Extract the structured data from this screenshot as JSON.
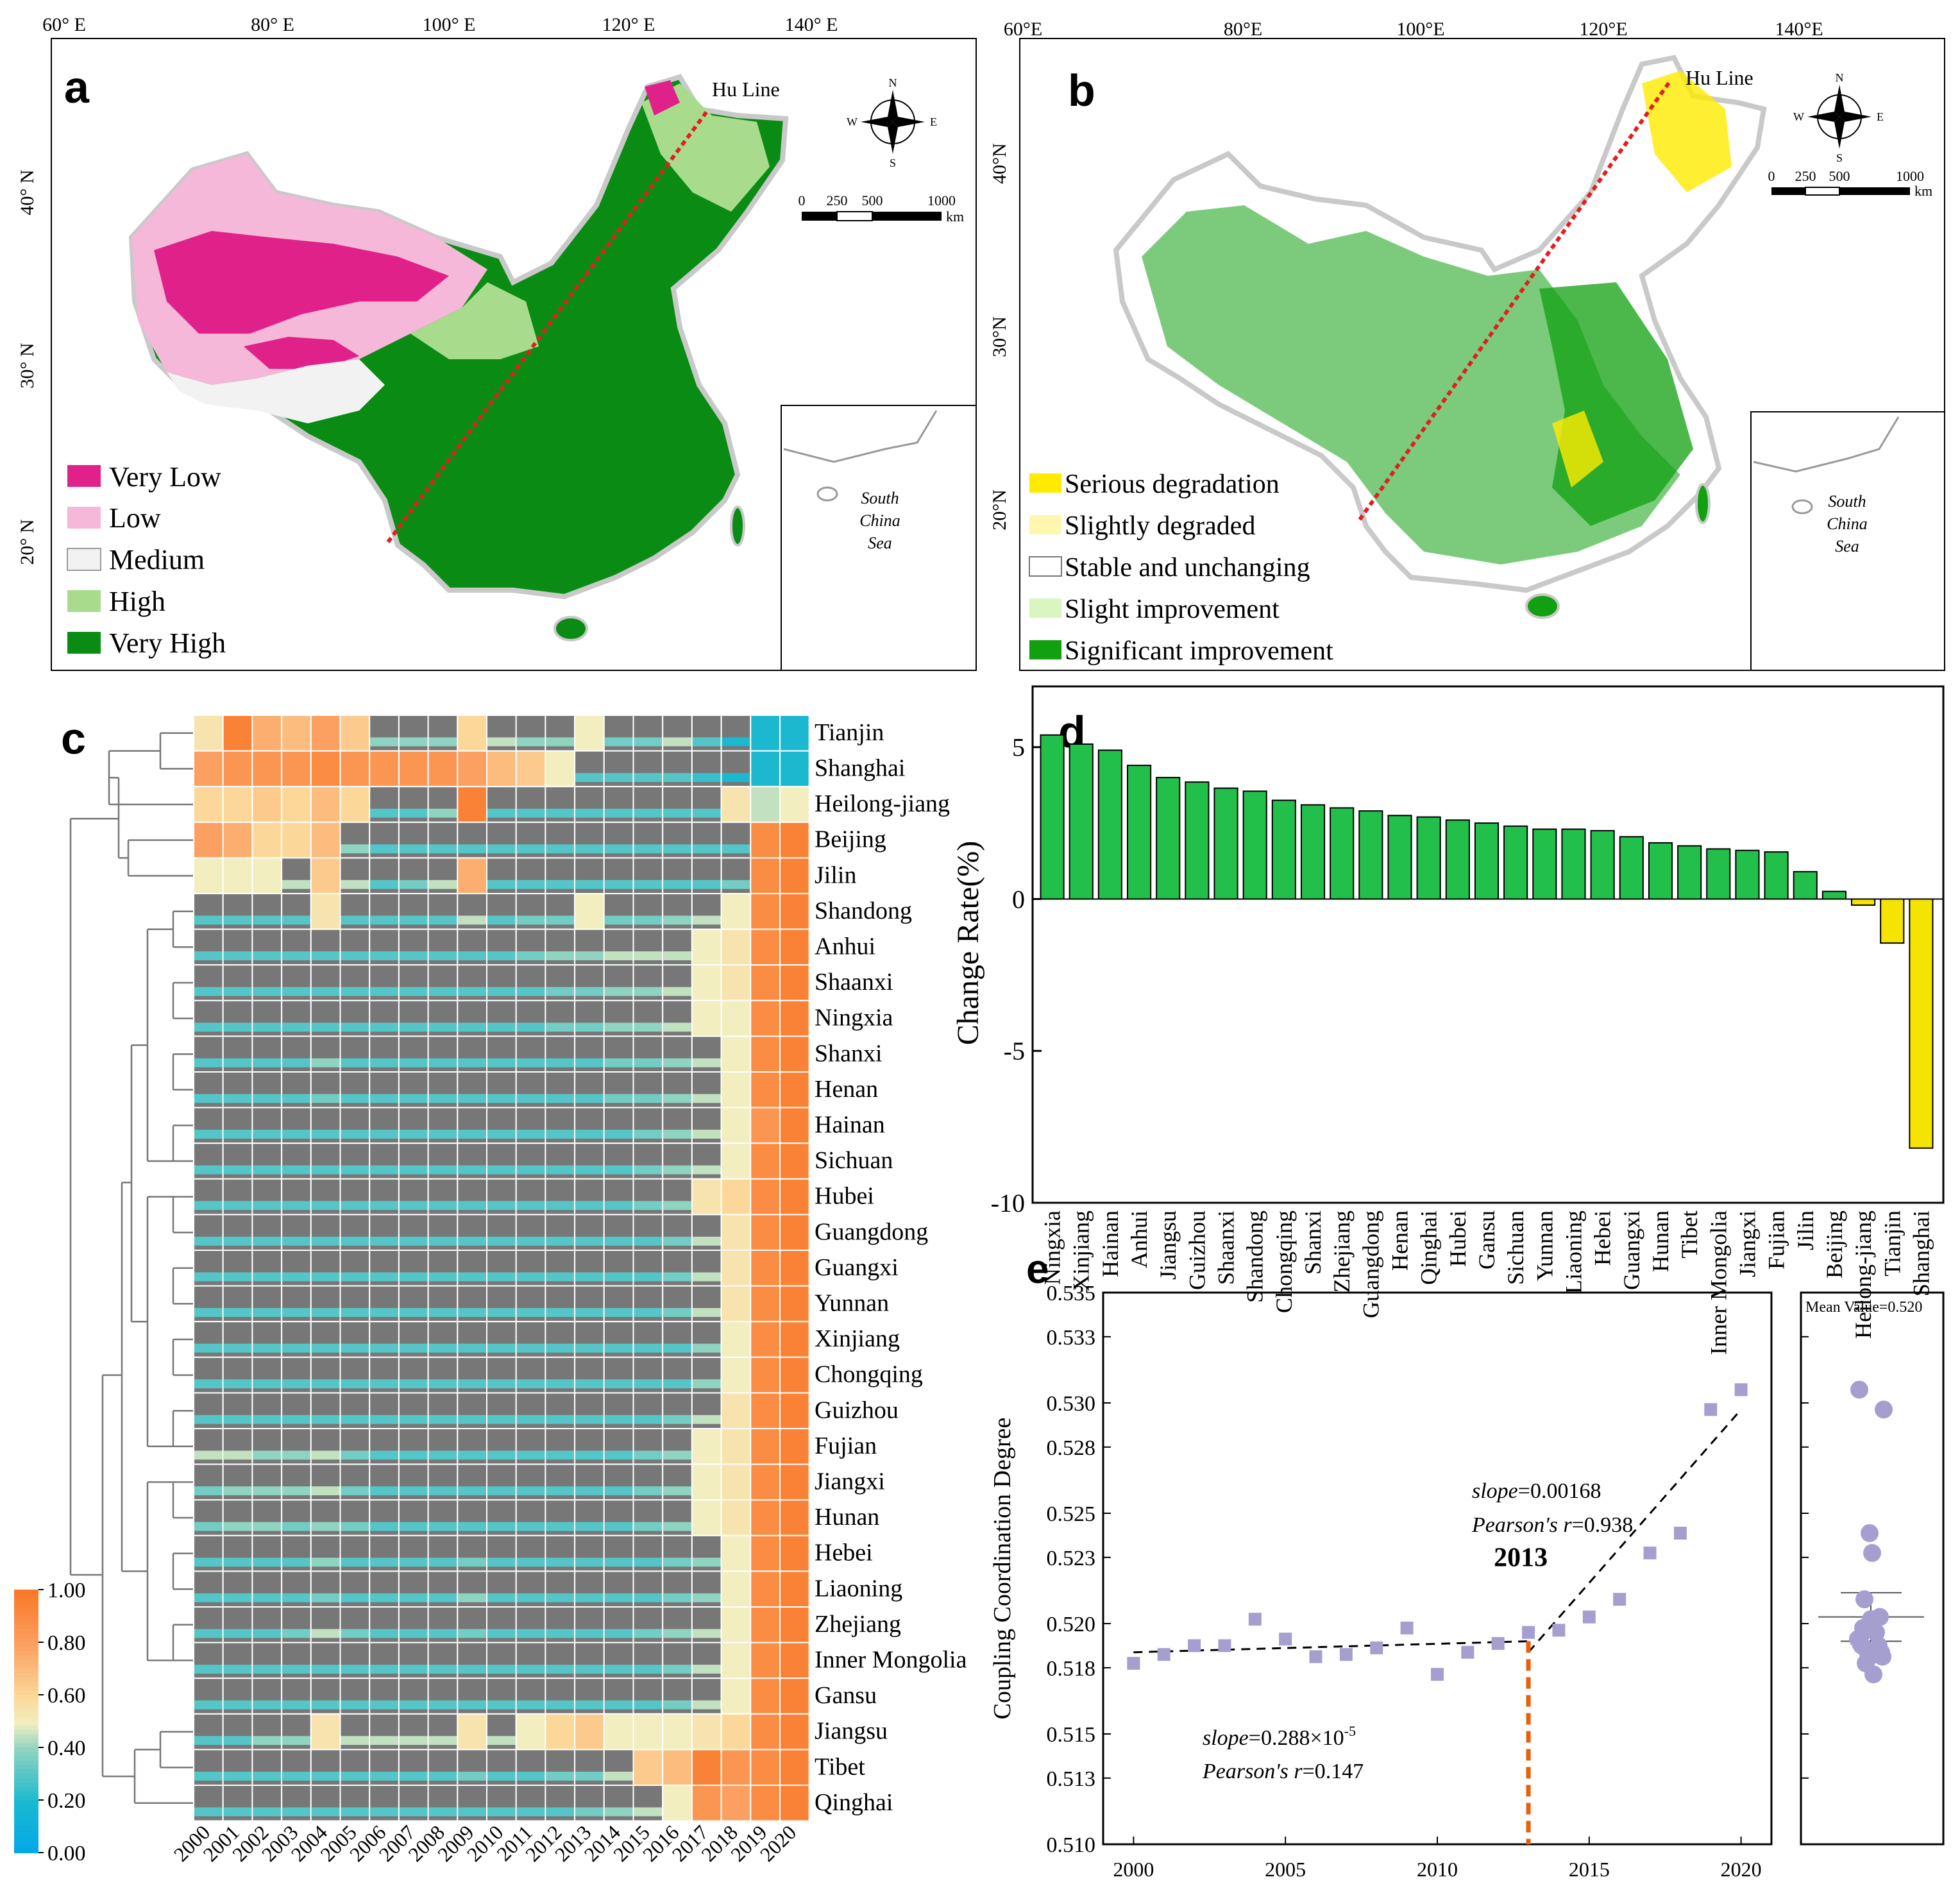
{
  "panels": {
    "a": "a",
    "b": "b",
    "c": "c",
    "d": "d",
    "e": "e"
  },
  "colors": {
    "very_low": "#e0218a",
    "low": "#f5b8d8",
    "medium": "#f2f2f2",
    "high": "#a8dc8c",
    "very_high": "#0a8c14",
    "serious_degradation": "#ffeb00",
    "slightly_degraded": "#fff6b0",
    "stable": "#ffffff",
    "slight_improvement": "#d9f5c0",
    "significant_improvement": "#10a010",
    "bar_positive": "#22c04a",
    "bar_negative": "#f5e400",
    "hu_line": "#e02020",
    "scatter": "#a59fd0",
    "breakpoint": "#e8600a",
    "heatmap_gray": "#777777"
  },
  "map_a": {
    "lon_ticks": [
      "60° E",
      "80° E",
      "100° E",
      "120° E",
      "140° E"
    ],
    "lat_ticks": [
      "40° N",
      "30° N",
      "20° N"
    ],
    "hu_line_label": "Hu Line",
    "compass": {
      "n": "N",
      "s": "S",
      "e": "E",
      "w": "W"
    },
    "scale_ticks": [
      "0",
      "250",
      "500",
      "1000"
    ],
    "scale_unit": "km",
    "inset_label": [
      "South",
      "China",
      "Sea"
    ],
    "legend": [
      "Very Low",
      "Low",
      "Medium",
      "High",
      "Very High"
    ]
  },
  "map_b": {
    "lon_ticks": [
      "60°E",
      "80°E",
      "100°E",
      "120°E",
      "140°E"
    ],
    "lat_ticks": [
      "40°N",
      "30°N",
      "20°N"
    ],
    "hu_line_label": "Hu Line",
    "compass": {
      "n": "N",
      "s": "S",
      "e": "E",
      "w": "W"
    },
    "scale_ticks": [
      "0",
      "250",
      "500",
      "1000"
    ],
    "scale_unit": "km",
    "inset_label": [
      "South",
      "China",
      "Sea"
    ],
    "legend": [
      "Serious degradation",
      "Slightly degraded",
      "Stable and unchanging",
      "Slight improvement",
      "Significant improvement"
    ]
  },
  "chart_data": [
    {
      "panel": "c",
      "type": "heatmap",
      "years": [
        "2000",
        "2001",
        "2002",
        "2003",
        "2004",
        "2005",
        "2006",
        "2007",
        "2008",
        "2009",
        "2010",
        "2011",
        "2012",
        "2013",
        "2014",
        "2015",
        "2016",
        "2017",
        "2018",
        "2019",
        "2020"
      ],
      "provinces": [
        "Tianjin",
        "Shanghai",
        "Heilong-jiang",
        "Beijing",
        "Jilin",
        "Shandong",
        "Anhui",
        "Shaanxi",
        "Ningxia",
        "Shanxi",
        "Henan",
        "Hainan",
        "Sichuan",
        "Hubei",
        "Guangdong",
        "Guangxi",
        "Yunnan",
        "Xinjiang",
        "Chongqing",
        "Guizhou",
        "Fujian",
        "Jiangxi",
        "Hunan",
        "Hebei",
        "Liaoning",
        "Zhejiang",
        "Inner Mongolia",
        "Gansu",
        "Jiangsu",
        "Tibet",
        "Qinghai"
      ],
      "values": [
        [
          0.55,
          0.95,
          0.75,
          0.7,
          0.8,
          0.65,
          0.4,
          0.4,
          0.4,
          0.6,
          0.45,
          0.4,
          0.4,
          0.5,
          0.35,
          0.35,
          0.45,
          0.3,
          0.2,
          0.2,
          0.2
        ],
        [
          0.8,
          0.85,
          0.85,
          0.85,
          0.9,
          0.85,
          0.85,
          0.85,
          0.85,
          0.8,
          0.7,
          0.65,
          0.5,
          0.3,
          0.3,
          0.3,
          0.3,
          0.25,
          0.2,
          0.2,
          0.2
        ],
        [
          0.6,
          0.6,
          0.65,
          0.6,
          0.7,
          0.6,
          0.3,
          0.3,
          0.4,
          0.95,
          0.3,
          0.3,
          0.3,
          0.3,
          0.3,
          0.3,
          0.3,
          0.3,
          0.55,
          0.45,
          0.5
        ],
        [
          0.8,
          0.75,
          0.6,
          0.6,
          0.7,
          0.4,
          0.3,
          0.3,
          0.3,
          0.3,
          0.3,
          0.3,
          0.3,
          0.3,
          0.3,
          0.3,
          0.3,
          0.3,
          0.3,
          0.9,
          0.95
        ],
        [
          0.5,
          0.5,
          0.5,
          0.45,
          0.65,
          0.45,
          0.3,
          0.35,
          0.45,
          0.75,
          0.3,
          0.3,
          0.3,
          0.3,
          0.3,
          0.3,
          0.3,
          0.3,
          0.35,
          0.9,
          0.95
        ],
        [
          0.3,
          0.3,
          0.3,
          0.3,
          0.55,
          0.3,
          0.3,
          0.3,
          0.3,
          0.45,
          0.3,
          0.35,
          0.35,
          0.5,
          0.35,
          0.35,
          0.4,
          0.45,
          0.5,
          0.9,
          0.95
        ],
        [
          0.3,
          0.3,
          0.3,
          0.3,
          0.3,
          0.3,
          0.3,
          0.3,
          0.3,
          0.3,
          0.3,
          0.35,
          0.4,
          0.4,
          0.45,
          0.45,
          0.45,
          0.5,
          0.55,
          0.9,
          0.95
        ],
        [
          0.3,
          0.3,
          0.3,
          0.3,
          0.3,
          0.3,
          0.3,
          0.3,
          0.3,
          0.3,
          0.3,
          0.3,
          0.35,
          0.35,
          0.4,
          0.4,
          0.45,
          0.5,
          0.55,
          0.9,
          0.95
        ],
        [
          0.3,
          0.3,
          0.3,
          0.3,
          0.3,
          0.3,
          0.3,
          0.3,
          0.3,
          0.3,
          0.3,
          0.3,
          0.35,
          0.35,
          0.4,
          0.4,
          0.45,
          0.5,
          0.5,
          0.9,
          0.95
        ],
        [
          0.3,
          0.3,
          0.3,
          0.3,
          0.4,
          0.3,
          0.3,
          0.3,
          0.3,
          0.3,
          0.3,
          0.3,
          0.3,
          0.3,
          0.35,
          0.35,
          0.4,
          0.45,
          0.5,
          0.9,
          0.95
        ],
        [
          0.3,
          0.3,
          0.3,
          0.3,
          0.35,
          0.3,
          0.3,
          0.3,
          0.3,
          0.3,
          0.3,
          0.3,
          0.3,
          0.3,
          0.35,
          0.35,
          0.4,
          0.45,
          0.5,
          0.9,
          0.95
        ],
        [
          0.3,
          0.3,
          0.3,
          0.3,
          0.3,
          0.3,
          0.3,
          0.3,
          0.3,
          0.3,
          0.3,
          0.3,
          0.3,
          0.3,
          0.3,
          0.35,
          0.4,
          0.45,
          0.5,
          0.85,
          0.95
        ],
        [
          0.3,
          0.3,
          0.3,
          0.3,
          0.3,
          0.3,
          0.3,
          0.3,
          0.3,
          0.3,
          0.3,
          0.3,
          0.3,
          0.3,
          0.3,
          0.35,
          0.4,
          0.45,
          0.5,
          0.9,
          0.95
        ],
        [
          0.3,
          0.3,
          0.3,
          0.3,
          0.3,
          0.3,
          0.3,
          0.3,
          0.3,
          0.3,
          0.3,
          0.3,
          0.3,
          0.3,
          0.3,
          0.35,
          0.4,
          0.55,
          0.6,
          0.9,
          0.95
        ],
        [
          0.3,
          0.3,
          0.3,
          0.3,
          0.3,
          0.3,
          0.3,
          0.3,
          0.3,
          0.3,
          0.3,
          0.3,
          0.3,
          0.3,
          0.3,
          0.3,
          0.35,
          0.45,
          0.55,
          0.9,
          0.95
        ],
        [
          0.3,
          0.3,
          0.3,
          0.3,
          0.3,
          0.3,
          0.3,
          0.3,
          0.3,
          0.3,
          0.3,
          0.3,
          0.3,
          0.3,
          0.3,
          0.3,
          0.35,
          0.45,
          0.55,
          0.9,
          0.95
        ],
        [
          0.3,
          0.3,
          0.3,
          0.3,
          0.3,
          0.3,
          0.3,
          0.3,
          0.3,
          0.3,
          0.3,
          0.3,
          0.3,
          0.3,
          0.3,
          0.3,
          0.35,
          0.45,
          0.55,
          0.9,
          0.95
        ],
        [
          0.3,
          0.3,
          0.3,
          0.3,
          0.3,
          0.3,
          0.3,
          0.3,
          0.3,
          0.3,
          0.3,
          0.3,
          0.3,
          0.3,
          0.3,
          0.3,
          0.3,
          0.4,
          0.5,
          0.9,
          0.95
        ],
        [
          0.3,
          0.3,
          0.3,
          0.3,
          0.3,
          0.3,
          0.3,
          0.3,
          0.3,
          0.3,
          0.3,
          0.3,
          0.3,
          0.3,
          0.3,
          0.3,
          0.3,
          0.4,
          0.5,
          0.9,
          0.95
        ],
        [
          0.3,
          0.3,
          0.3,
          0.3,
          0.3,
          0.3,
          0.3,
          0.3,
          0.3,
          0.3,
          0.3,
          0.3,
          0.3,
          0.3,
          0.3,
          0.3,
          0.35,
          0.45,
          0.55,
          0.9,
          0.95
        ],
        [
          0.45,
          0.45,
          0.4,
          0.4,
          0.45,
          0.35,
          0.3,
          0.3,
          0.3,
          0.3,
          0.3,
          0.3,
          0.3,
          0.3,
          0.3,
          0.35,
          0.4,
          0.5,
          0.55,
          0.9,
          0.95
        ],
        [
          0.35,
          0.4,
          0.4,
          0.4,
          0.45,
          0.35,
          0.3,
          0.3,
          0.3,
          0.3,
          0.3,
          0.3,
          0.3,
          0.3,
          0.3,
          0.35,
          0.4,
          0.5,
          0.55,
          0.9,
          0.95
        ],
        [
          0.35,
          0.4,
          0.4,
          0.35,
          0.4,
          0.35,
          0.3,
          0.3,
          0.3,
          0.3,
          0.3,
          0.3,
          0.3,
          0.3,
          0.3,
          0.35,
          0.4,
          0.5,
          0.55,
          0.9,
          0.95
        ],
        [
          0.3,
          0.3,
          0.3,
          0.3,
          0.4,
          0.3,
          0.3,
          0.3,
          0.3,
          0.35,
          0.3,
          0.3,
          0.3,
          0.3,
          0.3,
          0.3,
          0.35,
          0.4,
          0.5,
          0.9,
          0.95
        ],
        [
          0.3,
          0.3,
          0.3,
          0.3,
          0.35,
          0.3,
          0.3,
          0.3,
          0.3,
          0.4,
          0.3,
          0.3,
          0.3,
          0.3,
          0.3,
          0.3,
          0.35,
          0.4,
          0.5,
          0.9,
          0.95
        ],
        [
          0.3,
          0.3,
          0.3,
          0.35,
          0.45,
          0.35,
          0.3,
          0.3,
          0.3,
          0.35,
          0.3,
          0.3,
          0.3,
          0.3,
          0.3,
          0.35,
          0.4,
          0.45,
          0.5,
          0.9,
          0.95
        ],
        [
          0.3,
          0.3,
          0.3,
          0.3,
          0.3,
          0.3,
          0.3,
          0.3,
          0.3,
          0.3,
          0.3,
          0.3,
          0.3,
          0.3,
          0.3,
          0.3,
          0.35,
          0.45,
          0.5,
          0.9,
          0.95
        ],
        [
          0.3,
          0.3,
          0.3,
          0.3,
          0.3,
          0.3,
          0.3,
          0.3,
          0.3,
          0.3,
          0.3,
          0.3,
          0.3,
          0.3,
          0.3,
          0.3,
          0.35,
          0.45,
          0.5,
          0.9,
          0.95
        ],
        [
          0.3,
          0.3,
          0.4,
          0.4,
          0.55,
          0.45,
          0.45,
          0.45,
          0.45,
          0.55,
          0.45,
          0.5,
          0.6,
          0.65,
          0.5,
          0.5,
          0.5,
          0.55,
          0.6,
          0.9,
          0.95
        ],
        [
          0.3,
          0.3,
          0.3,
          0.3,
          0.3,
          0.3,
          0.3,
          0.3,
          0.3,
          0.35,
          0.3,
          0.3,
          0.35,
          0.35,
          0.45,
          0.65,
          0.7,
          0.95,
          0.85,
          0.9,
          0.95
        ],
        [
          0.3,
          0.3,
          0.3,
          0.3,
          0.3,
          0.3,
          0.3,
          0.3,
          0.3,
          0.3,
          0.3,
          0.3,
          0.3,
          0.35,
          0.4,
          0.45,
          0.5,
          0.85,
          0.8,
          0.9,
          0.95
        ]
      ],
      "colorbar": {
        "min": 0.0,
        "max": 1.0,
        "ticks": [
          "0.00",
          "0.20",
          "0.40",
          "0.60",
          "0.80",
          "1.00"
        ]
      }
    },
    {
      "panel": "d",
      "type": "bar",
      "title": "",
      "xlabel": "",
      "ylabel": "Change Rate(%)",
      "ylim": [
        -10,
        7
      ],
      "yticks": [
        "5",
        "0",
        "-5",
        "-10"
      ],
      "categories": [
        "Ningxia",
        "Xinjiang",
        "Hainan",
        "Anhui",
        "Jiangsu",
        "Guizhou",
        "Shaanxi",
        "Shandong",
        "Chongqing",
        "Shanxi",
        "Zhejiang",
        "Guangdong",
        "Henan",
        "Qinghai",
        "Hubei",
        "Gansu",
        "Sichuan",
        "Yunnan",
        "Liaoning",
        "Hebei",
        "Guangxi",
        "Hunan",
        "Tibet",
        "Inner Mongolia",
        "Jiangxi",
        "Fujian",
        "Jilin",
        "Beijing",
        "Heilong-jiang",
        "Tianjin",
        "Shanghai"
      ],
      "values": [
        5.4,
        5.1,
        4.9,
        4.4,
        4.0,
        3.85,
        3.65,
        3.55,
        3.25,
        3.1,
        3.0,
        2.9,
        2.75,
        2.7,
        2.6,
        2.5,
        2.4,
        2.3,
        2.3,
        2.25,
        2.05,
        1.85,
        1.75,
        1.65,
        1.6,
        1.55,
        0.9,
        0.25,
        -0.2,
        -1.45,
        -8.2
      ]
    },
    {
      "panel": "e",
      "type": "scatter",
      "ylabel": "Coupling Coordination Degree",
      "xlim": [
        1999,
        2021
      ],
      "ylim": [
        0.51,
        0.535
      ],
      "xticks": [
        "2000",
        "2005",
        "2010",
        "2015",
        "2020"
      ],
      "yticks": [
        "0.510",
        "0.513",
        "0.515",
        "0.518",
        "0.520",
        "0.523",
        "0.525",
        "0.528",
        "0.530",
        "0.533",
        "0.535"
      ],
      "x": [
        2000,
        2001,
        2002,
        2003,
        2004,
        2005,
        2006,
        2007,
        2008,
        2009,
        2010,
        2011,
        2012,
        2013,
        2014,
        2015,
        2016,
        2017,
        2018,
        2019,
        2020
      ],
      "y": [
        0.5182,
        0.5186,
        0.519,
        0.519,
        0.5202,
        0.5193,
        0.5185,
        0.5186,
        0.5189,
        0.5198,
        0.5177,
        0.5187,
        0.5191,
        0.5196,
        0.5197,
        0.5203,
        0.5211,
        0.5232,
        0.5241,
        0.5297,
        0.5306
      ],
      "fit1": {
        "x": [
          2000,
          2013
        ],
        "y": [
          0.5187,
          0.5192
        ],
        "slope": "0.288×10",
        "slope_exp": "-5",
        "r": "0.147"
      },
      "fit2": {
        "x": [
          2013,
          2020
        ],
        "y": [
          0.5187,
          0.5297
        ],
        "slope": "0.00168",
        "r": "0.938"
      },
      "breakpoint": "2013",
      "slope_label": "slope",
      "r_label": "Pearson's r",
      "mean_label": "Mean Value=0.520",
      "mean_value": 0.5203
    }
  ]
}
